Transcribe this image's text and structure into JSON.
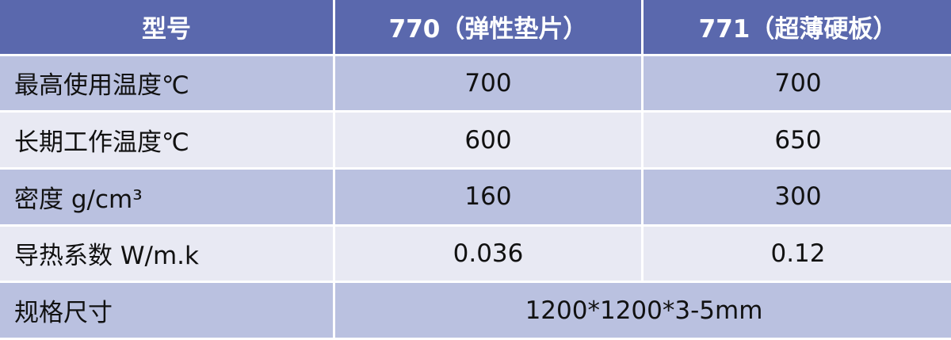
{
  "header": [
    "型号",
    "770（弹性垫片）",
    "771（超薄硬板）"
  ],
  "rows": [
    {
      "label": "最高使用温度℃",
      "v1": "700",
      "v2": "700"
    },
    {
      "label": "长期工作温度℃",
      "v1": "600",
      "v2": "650"
    },
    {
      "label": "密度 g/cm³",
      "v1": "160",
      "v2": "300"
    },
    {
      "label": "导热系数 W/m.k",
      "v1": "0.036",
      "v2": "0.12"
    }
  ],
  "spec": {
    "label": "规格尺寸",
    "value": "1200*1200*3-5mm"
  },
  "colors": {
    "header": "#5a68ad",
    "row_odd": "#bac1e0",
    "row_even": "#e8e9f3"
  }
}
